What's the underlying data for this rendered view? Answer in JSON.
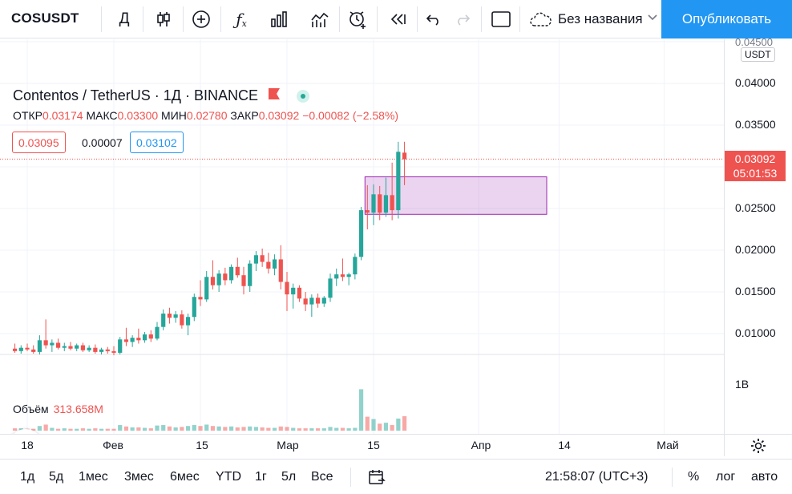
{
  "toolbar": {
    "symbol": "COSUSDT",
    "interval": "Д",
    "untitled": "Без названия",
    "publish": "Опубликовать"
  },
  "legend": {
    "title": "Contentos / TetherUS · 1Д · BINANCE",
    "open_label": "ОТКР",
    "open": "0.03174",
    "high_label": "МАКС",
    "high": "0.03300",
    "low_label": "МИН",
    "low": "0.02780",
    "close_label": "ЗАКР",
    "close": "0.03092",
    "change": "−0.00082 (−2.58%)",
    "bid": "0.03095",
    "spread": "0.00007",
    "ask": "0.03102"
  },
  "volume": {
    "label": "Объём",
    "value": "313.658M",
    "axis_label": "1B"
  },
  "price_axis": {
    "currency": "USDT",
    "ticks": [
      "0.04500",
      "0.04000",
      "0.03500",
      "0.02500",
      "0.02000",
      "0.01500",
      "0.01000"
    ],
    "last_price": "0.03092",
    "countdown": "05:01:53"
  },
  "time_axis": {
    "ticks": [
      "18",
      "Фев",
      "15",
      "Мар",
      "15",
      "Апр",
      "14",
      "Май"
    ]
  },
  "bottom": {
    "ranges": [
      "1д",
      "5д",
      "1мес",
      "3мес",
      "6мес",
      "YTD",
      "1г",
      "5л",
      "Все"
    ],
    "clock": "21:58:07 (UTC+3)",
    "percent": "%",
    "log": "лог",
    "auto": "авто"
  },
  "colors": {
    "up": "#26a69a",
    "down": "#ef5350",
    "accent": "#2196f3",
    "zone": "#9c27b0"
  },
  "chart_data": {
    "type": "candlestick",
    "symbol": "COSUSDT",
    "interval": "1D",
    "ylim": [
      0.007,
      0.0455
    ],
    "candles": [
      {
        "date": "2021-01-16",
        "o": 0.0082,
        "h": 0.0088,
        "l": 0.0077,
        "c": 0.0079,
        "v": 0.05
      },
      {
        "date": "2021-01-17",
        "o": 0.0079,
        "h": 0.0086,
        "l": 0.0076,
        "c": 0.0083,
        "v": 0.05
      },
      {
        "date": "2021-01-18",
        "o": 0.0083,
        "h": 0.0088,
        "l": 0.0079,
        "c": 0.0081,
        "v": 0.04
      },
      {
        "date": "2021-01-19",
        "o": 0.0081,
        "h": 0.0086,
        "l": 0.0076,
        "c": 0.0078,
        "v": 0.04
      },
      {
        "date": "2021-01-20",
        "o": 0.0078,
        "h": 0.0098,
        "l": 0.0075,
        "c": 0.0092,
        "v": 0.1
      },
      {
        "date": "2021-01-21",
        "o": 0.0092,
        "h": 0.0117,
        "l": 0.0082,
        "c": 0.0086,
        "v": 0.13
      },
      {
        "date": "2021-01-22",
        "o": 0.0086,
        "h": 0.0093,
        "l": 0.0078,
        "c": 0.0089,
        "v": 0.06
      },
      {
        "date": "2021-01-23",
        "o": 0.0089,
        "h": 0.0094,
        "l": 0.0081,
        "c": 0.0083,
        "v": 0.04
      },
      {
        "date": "2021-01-24",
        "o": 0.0083,
        "h": 0.0089,
        "l": 0.0079,
        "c": 0.0085,
        "v": 0.05
      },
      {
        "date": "2021-01-25",
        "o": 0.0085,
        "h": 0.009,
        "l": 0.008,
        "c": 0.0082,
        "v": 0.04
      },
      {
        "date": "2021-01-26",
        "o": 0.0082,
        "h": 0.0088,
        "l": 0.0079,
        "c": 0.0086,
        "v": 0.04
      },
      {
        "date": "2021-01-27",
        "o": 0.0086,
        "h": 0.0089,
        "l": 0.0078,
        "c": 0.008,
        "v": 0.05
      },
      {
        "date": "2021-01-28",
        "o": 0.008,
        "h": 0.0086,
        "l": 0.0078,
        "c": 0.0083,
        "v": 0.04
      },
      {
        "date": "2021-01-29",
        "o": 0.0083,
        "h": 0.0087,
        "l": 0.0076,
        "c": 0.0078,
        "v": 0.05
      },
      {
        "date": "2021-01-30",
        "o": 0.0078,
        "h": 0.0083,
        "l": 0.0075,
        "c": 0.0081,
        "v": 0.04
      },
      {
        "date": "2021-01-31",
        "o": 0.0081,
        "h": 0.0084,
        "l": 0.0076,
        "c": 0.0079,
        "v": 0.04
      },
      {
        "date": "2021-02-01",
        "o": 0.0079,
        "h": 0.0085,
        "l": 0.0074,
        "c": 0.0077,
        "v": 0.04
      },
      {
        "date": "2021-02-02",
        "o": 0.0077,
        "h": 0.0096,
        "l": 0.0075,
        "c": 0.0093,
        "v": 0.12
      },
      {
        "date": "2021-02-03",
        "o": 0.0093,
        "h": 0.0107,
        "l": 0.0085,
        "c": 0.009,
        "v": 0.09
      },
      {
        "date": "2021-02-04",
        "o": 0.009,
        "h": 0.0098,
        "l": 0.0084,
        "c": 0.0095,
        "v": 0.07
      },
      {
        "date": "2021-02-05",
        "o": 0.0095,
        "h": 0.0106,
        "l": 0.0088,
        "c": 0.0092,
        "v": 0.07
      },
      {
        "date": "2021-02-06",
        "o": 0.0092,
        "h": 0.0102,
        "l": 0.0089,
        "c": 0.0099,
        "v": 0.06
      },
      {
        "date": "2021-02-07",
        "o": 0.0099,
        "h": 0.0104,
        "l": 0.009,
        "c": 0.0094,
        "v": 0.05
      },
      {
        "date": "2021-02-08",
        "o": 0.0094,
        "h": 0.0114,
        "l": 0.0092,
        "c": 0.0108,
        "v": 0.11
      },
      {
        "date": "2021-02-09",
        "o": 0.0108,
        "h": 0.0129,
        "l": 0.0104,
        "c": 0.0124,
        "v": 0.12
      },
      {
        "date": "2021-02-10",
        "o": 0.0124,
        "h": 0.0131,
        "l": 0.0112,
        "c": 0.0119,
        "v": 0.09
      },
      {
        "date": "2021-02-11",
        "o": 0.0119,
        "h": 0.0127,
        "l": 0.0113,
        "c": 0.0123,
        "v": 0.07
      },
      {
        "date": "2021-02-12",
        "o": 0.0123,
        "h": 0.0128,
        "l": 0.0106,
        "c": 0.011,
        "v": 0.08
      },
      {
        "date": "2021-02-13",
        "o": 0.011,
        "h": 0.0124,
        "l": 0.0098,
        "c": 0.012,
        "v": 0.1
      },
      {
        "date": "2021-02-14",
        "o": 0.012,
        "h": 0.0148,
        "l": 0.0115,
        "c": 0.0144,
        "v": 0.12
      },
      {
        "date": "2021-02-15",
        "o": 0.0144,
        "h": 0.0164,
        "l": 0.0133,
        "c": 0.0141,
        "v": 0.1
      },
      {
        "date": "2021-02-16",
        "o": 0.0141,
        "h": 0.0175,
        "l": 0.0138,
        "c": 0.0168,
        "v": 0.13
      },
      {
        "date": "2021-02-17",
        "o": 0.0168,
        "h": 0.0188,
        "l": 0.0153,
        "c": 0.0158,
        "v": 0.1
      },
      {
        "date": "2021-02-18",
        "o": 0.0158,
        "h": 0.0176,
        "l": 0.015,
        "c": 0.0172,
        "v": 0.09
      },
      {
        "date": "2021-02-19",
        "o": 0.0172,
        "h": 0.0179,
        "l": 0.0158,
        "c": 0.0164,
        "v": 0.08
      },
      {
        "date": "2021-02-20",
        "o": 0.0164,
        "h": 0.0183,
        "l": 0.016,
        "c": 0.018,
        "v": 0.09
      },
      {
        "date": "2021-02-21",
        "o": 0.018,
        "h": 0.0191,
        "l": 0.0167,
        "c": 0.017,
        "v": 0.07
      },
      {
        "date": "2021-02-22",
        "o": 0.017,
        "h": 0.018,
        "l": 0.0147,
        "c": 0.0157,
        "v": 0.08
      },
      {
        "date": "2021-02-23",
        "o": 0.0157,
        "h": 0.0188,
        "l": 0.015,
        "c": 0.0184,
        "v": 0.09
      },
      {
        "date": "2021-02-24",
        "o": 0.0184,
        "h": 0.0199,
        "l": 0.0175,
        "c": 0.0194,
        "v": 0.08
      },
      {
        "date": "2021-02-25",
        "o": 0.0194,
        "h": 0.0202,
        "l": 0.018,
        "c": 0.0186,
        "v": 0.07
      },
      {
        "date": "2021-02-26",
        "o": 0.0186,
        "h": 0.0197,
        "l": 0.0172,
        "c": 0.0178,
        "v": 0.06
      },
      {
        "date": "2021-02-27",
        "o": 0.0178,
        "h": 0.0195,
        "l": 0.017,
        "c": 0.0189,
        "v": 0.06
      },
      {
        "date": "2021-02-28",
        "o": 0.0189,
        "h": 0.0206,
        "l": 0.0153,
        "c": 0.0162,
        "v": 0.09
      },
      {
        "date": "2021-03-01",
        "o": 0.0162,
        "h": 0.0174,
        "l": 0.0127,
        "c": 0.0147,
        "v": 0.08
      },
      {
        "date": "2021-03-02",
        "o": 0.0147,
        "h": 0.016,
        "l": 0.013,
        "c": 0.0155,
        "v": 0.06
      },
      {
        "date": "2021-03-03",
        "o": 0.0155,
        "h": 0.0158,
        "l": 0.0138,
        "c": 0.0142,
        "v": 0.05
      },
      {
        "date": "2021-03-04",
        "o": 0.0142,
        "h": 0.015,
        "l": 0.0127,
        "c": 0.0135,
        "v": 0.05
      },
      {
        "date": "2021-03-05",
        "o": 0.0135,
        "h": 0.0147,
        "l": 0.012,
        "c": 0.0143,
        "v": 0.05
      },
      {
        "date": "2021-03-06",
        "o": 0.0143,
        "h": 0.0148,
        "l": 0.0131,
        "c": 0.0136,
        "v": 0.05
      },
      {
        "date": "2021-03-07",
        "o": 0.0136,
        "h": 0.0145,
        "l": 0.0132,
        "c": 0.0143,
        "v": 0.05
      },
      {
        "date": "2021-03-08",
        "o": 0.0143,
        "h": 0.0172,
        "l": 0.0138,
        "c": 0.0166,
        "v": 0.08
      },
      {
        "date": "2021-03-09",
        "o": 0.0166,
        "h": 0.0178,
        "l": 0.0157,
        "c": 0.0171,
        "v": 0.06
      },
      {
        "date": "2021-03-10",
        "o": 0.0171,
        "h": 0.019,
        "l": 0.0163,
        "c": 0.0168,
        "v": 0.06
      },
      {
        "date": "2021-03-11",
        "o": 0.0168,
        "h": 0.0173,
        "l": 0.0158,
        "c": 0.0171,
        "v": 0.05
      },
      {
        "date": "2021-03-12",
        "o": 0.0171,
        "h": 0.0196,
        "l": 0.0165,
        "c": 0.0192,
        "v": 0.06
      },
      {
        "date": "2021-03-13",
        "o": 0.0192,
        "h": 0.0252,
        "l": 0.0188,
        "c": 0.0248,
        "v": 0.89
      },
      {
        "date": "2021-03-14",
        "o": 0.0248,
        "h": 0.0278,
        "l": 0.0225,
        "c": 0.0245,
        "v": 0.3
      },
      {
        "date": "2021-03-15",
        "o": 0.0245,
        "h": 0.0279,
        "l": 0.023,
        "c": 0.0267,
        "v": 0.25
      },
      {
        "date": "2021-03-16",
        "o": 0.0267,
        "h": 0.0277,
        "l": 0.0236,
        "c": 0.0245,
        "v": 0.15
      },
      {
        "date": "2021-03-17",
        "o": 0.0245,
        "h": 0.0287,
        "l": 0.024,
        "c": 0.0266,
        "v": 0.17
      },
      {
        "date": "2021-03-18",
        "o": 0.0266,
        "h": 0.0305,
        "l": 0.0236,
        "c": 0.0248,
        "v": 0.12
      },
      {
        "date": "2021-03-19",
        "o": 0.0248,
        "h": 0.033,
        "l": 0.0238,
        "c": 0.0318,
        "v": 0.26
      },
      {
        "date": "2021-03-20",
        "o": 0.0317,
        "h": 0.033,
        "l": 0.0278,
        "c": 0.0309,
        "v": 0.31
      }
    ],
    "zone": {
      "top": 0.0288,
      "bottom": 0.0243,
      "start": "2021-03-14",
      "end": "2021-04-12"
    },
    "last_price": 0.03092
  }
}
